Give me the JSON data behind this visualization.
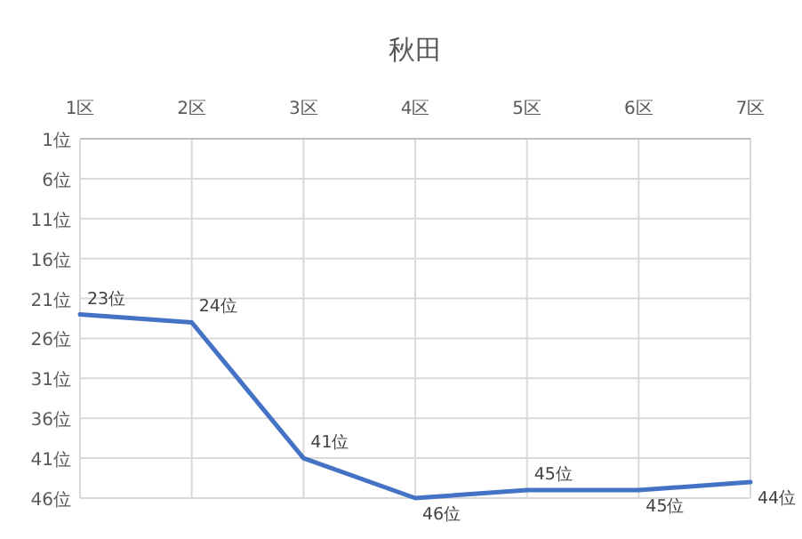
{
  "chart_data": {
    "type": "line",
    "title": "秋田",
    "categories": [
      "1区",
      "2区",
      "3区",
      "4区",
      "5区",
      "6区",
      "7区"
    ],
    "values": [
      23,
      24,
      41,
      46,
      45,
      45,
      44
    ],
    "value_labels": [
      "23位",
      "24位",
      "41位",
      "46位",
      "45位",
      "45位",
      "44位"
    ],
    "color": "#4472c4",
    "line_style": "solid",
    "grid": true,
    "ylim": [
      46,
      1
    ],
    "yticks": [
      {
        "value": 1,
        "label": "1位"
      },
      {
        "value": 6,
        "label": "6位"
      },
      {
        "value": 11,
        "label": "11位"
      },
      {
        "value": 16,
        "label": "16位"
      },
      {
        "value": 21,
        "label": "21位"
      },
      {
        "value": 26,
        "label": "26位"
      },
      {
        "value": 31,
        "label": "31位"
      },
      {
        "value": 36,
        "label": "36位"
      },
      {
        "value": 41,
        "label": "41位"
      },
      {
        "value": 46,
        "label": "46位"
      }
    ]
  }
}
